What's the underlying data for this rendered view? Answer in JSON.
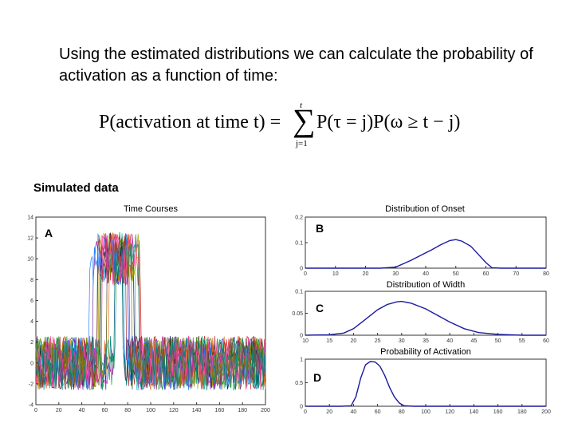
{
  "intro_text": "Using the estimated distributions we can calculate the probability of activation as a function of time:",
  "formula": {
    "lhs": "P(activation at time t) =",
    "upper_limit": "t",
    "lower_limit": "j=1",
    "rhs": "P(τ = j)P(ω ≥ t − j)"
  },
  "simulated_label": "Simulated data",
  "colors": {
    "curve": "#1a1aa0",
    "axis": "#333333"
  },
  "chart_data": [
    {
      "id": "A",
      "type": "line",
      "title": "Time Courses",
      "panel_label": "A",
      "xlim": [
        0,
        200
      ],
      "ylim": [
        -4,
        14
      ],
      "x_ticks": [
        0,
        20,
        40,
        60,
        80,
        100,
        120,
        140,
        160,
        180,
        200
      ],
      "y_ticks": [
        -4,
        -2,
        0,
        2,
        4,
        6,
        8,
        10,
        12,
        14
      ],
      "series_count": 15,
      "baseline_level": 0,
      "active_level": 10,
      "noise_amplitude": 2.6,
      "onset_range": [
        45,
        70
      ],
      "offset_range": [
        75,
        92
      ],
      "series_colors": [
        "#1f1fd0",
        "#1a8f1a",
        "#d02020",
        "#1fb5c0",
        "#c020c0",
        "#b0a000",
        "#202020",
        "#e07020",
        "#7030a0",
        "#2080ff",
        "#20a060",
        "#a03030",
        "#808000",
        "#ff40a0",
        "#008080"
      ]
    },
    {
      "id": "B",
      "type": "line",
      "title": "Distribution of Onset",
      "panel_label": "B",
      "xlim": [
        0,
        80
      ],
      "ylim": [
        0,
        0.2
      ],
      "x_ticks": [
        0,
        10,
        20,
        30,
        40,
        50,
        60,
        70,
        80
      ],
      "y_ticks": [
        0,
        0.1,
        0.2
      ],
      "x": [
        0,
        10,
        20,
        25,
        30,
        35,
        40,
        42,
        45,
        48,
        50,
        52,
        55,
        57,
        60,
        62,
        65,
        70,
        80
      ],
      "y": [
        0,
        0,
        0,
        0,
        0.004,
        0.03,
        0.06,
        0.072,
        0.092,
        0.108,
        0.112,
        0.106,
        0.086,
        0.06,
        0.022,
        0.002,
        0,
        0,
        0
      ]
    },
    {
      "id": "C",
      "type": "line",
      "title": "Distribution of Width",
      "panel_label": "C",
      "xlim": [
        10,
        60
      ],
      "ylim": [
        0,
        0.1
      ],
      "x_ticks": [
        10,
        15,
        20,
        25,
        30,
        35,
        40,
        45,
        50,
        55,
        60
      ],
      "y_ticks": [
        0,
        0.05,
        0.1
      ],
      "x": [
        10,
        15,
        18,
        20,
        22,
        25,
        27,
        29,
        30,
        32,
        35,
        38,
        40,
        43,
        46,
        50,
        55,
        60
      ],
      "y": [
        0,
        0.001,
        0.005,
        0.015,
        0.032,
        0.058,
        0.07,
        0.076,
        0.077,
        0.073,
        0.06,
        0.042,
        0.03,
        0.015,
        0.006,
        0.002,
        0,
        0
      ]
    },
    {
      "id": "D",
      "type": "line",
      "title": "Probability of Activation",
      "panel_label": "D",
      "xlim": [
        0,
        200
      ],
      "ylim": [
        0,
        1
      ],
      "x_ticks": [
        0,
        20,
        40,
        60,
        80,
        100,
        120,
        140,
        160,
        180,
        200
      ],
      "y_ticks": [
        0,
        0.5,
        1
      ],
      "x": [
        0,
        30,
        38,
        42,
        46,
        50,
        54,
        58,
        62,
        66,
        70,
        74,
        78,
        82,
        90,
        120,
        200
      ],
      "y": [
        0,
        0,
        0.01,
        0.2,
        0.6,
        0.88,
        0.95,
        0.94,
        0.85,
        0.65,
        0.4,
        0.2,
        0.07,
        0.01,
        0,
        0,
        0
      ]
    }
  ]
}
